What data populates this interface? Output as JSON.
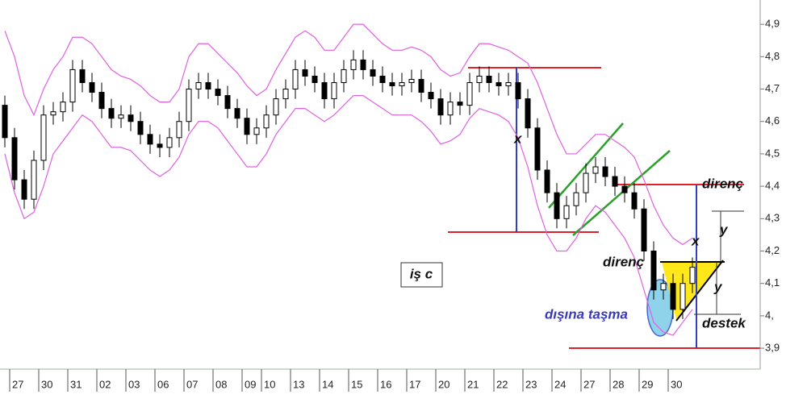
{
  "chart_data": {
    "type": "candlestick",
    "categories": [
      null,
      "27",
      null,
      null,
      "30",
      null,
      null,
      "31",
      null,
      null,
      "02",
      null,
      null,
      "03",
      null,
      null,
      "06",
      null,
      null,
      "07",
      null,
      null,
      "08",
      null,
      null,
      "09",
      null,
      "10",
      null,
      null,
      "13",
      null,
      null,
      "14",
      null,
      null,
      "15",
      null,
      null,
      "16",
      null,
      null,
      "17",
      null,
      null,
      "20",
      null,
      null,
      "21",
      null,
      null,
      "22",
      null,
      null,
      "23",
      null,
      null,
      "24",
      null,
      null,
      "27",
      null,
      null,
      "28",
      null,
      null,
      "29",
      null,
      null,
      "30",
      null,
      null
    ],
    "open": [
      4.65,
      4.55,
      4.42,
      4.36,
      4.48,
      4.62,
      4.63,
      4.66,
      4.76,
      4.72,
      4.69,
      4.64,
      4.61,
      4.62,
      4.6,
      4.56,
      4.53,
      4.52,
      4.55,
      4.6,
      4.7,
      4.72,
      4.7,
      4.68,
      4.64,
      4.61,
      4.56,
      4.58,
      4.62,
      4.67,
      4.7,
      4.76,
      4.74,
      4.72,
      4.67,
      4.72,
      4.76,
      4.79,
      4.76,
      4.74,
      4.72,
      4.71,
      4.72,
      4.73,
      4.69,
      4.67,
      4.62,
      4.66,
      4.65,
      4.72,
      4.74,
      4.72,
      4.71,
      4.72,
      4.67,
      4.58,
      4.45,
      4.38,
      4.3,
      4.34,
      4.38,
      4.44,
      4.46,
      4.43,
      4.4,
      4.38,
      4.33,
      4.2,
      4.08,
      4.1,
      4.02,
      4.1
    ],
    "high": [
      4.68,
      4.58,
      4.45,
      4.51,
      4.65,
      4.66,
      4.69,
      4.79,
      4.79,
      4.75,
      4.72,
      4.67,
      4.65,
      4.65,
      4.63,
      4.59,
      4.56,
      4.58,
      4.63,
      4.73,
      4.75,
      4.75,
      4.73,
      4.71,
      4.67,
      4.64,
      4.61,
      4.65,
      4.7,
      4.73,
      4.79,
      4.79,
      4.77,
      4.75,
      4.75,
      4.79,
      4.82,
      4.82,
      4.79,
      4.77,
      4.75,
      4.75,
      4.76,
      4.76,
      4.72,
      4.7,
      4.69,
      4.69,
      4.75,
      4.77,
      4.77,
      4.75,
      4.75,
      4.75,
      4.7,
      4.61,
      4.48,
      4.41,
      4.37,
      4.41,
      4.47,
      4.49,
      4.49,
      4.46,
      4.43,
      4.41,
      4.36,
      4.23,
      4.13,
      4.13,
      4.13,
      4.18
    ],
    "low": [
      4.52,
      4.39,
      4.33,
      4.33,
      4.45,
      4.59,
      4.6,
      4.63,
      4.69,
      4.66,
      4.61,
      4.58,
      4.58,
      4.57,
      4.53,
      4.5,
      4.49,
      4.49,
      4.52,
      4.57,
      4.67,
      4.67,
      4.65,
      4.61,
      4.58,
      4.53,
      4.53,
      4.55,
      4.59,
      4.64,
      4.67,
      4.71,
      4.69,
      4.64,
      4.64,
      4.69,
      4.73,
      4.73,
      4.71,
      4.69,
      4.68,
      4.68,
      4.69,
      4.66,
      4.64,
      4.59,
      4.59,
      4.62,
      4.62,
      4.69,
      4.69,
      4.68,
      4.68,
      4.64,
      4.55,
      4.42,
      4.35,
      4.27,
      4.27,
      4.31,
      4.35,
      4.41,
      4.4,
      4.37,
      4.35,
      4.3,
      4.17,
      4.05,
      4.05,
      3.99,
      3.99,
      4.07
    ],
    "close": [
      4.55,
      4.42,
      4.36,
      4.48,
      4.62,
      4.63,
      4.66,
      4.76,
      4.72,
      4.69,
      4.64,
      4.61,
      4.62,
      4.6,
      4.56,
      4.53,
      4.52,
      4.55,
      4.6,
      4.7,
      4.72,
      4.7,
      4.68,
      4.64,
      4.61,
      4.56,
      4.58,
      4.62,
      4.67,
      4.7,
      4.76,
      4.74,
      4.72,
      4.67,
      4.72,
      4.76,
      4.79,
      4.76,
      4.74,
      4.72,
      4.71,
      4.72,
      4.73,
      4.69,
      4.67,
      4.62,
      4.66,
      4.65,
      4.72,
      4.74,
      4.72,
      4.71,
      4.72,
      4.67,
      4.58,
      4.45,
      4.38,
      4.3,
      4.34,
      4.38,
      4.44,
      4.46,
      4.43,
      4.4,
      4.38,
      4.33,
      4.2,
      4.08,
      4.1,
      4.02,
      4.1,
      4.15
    ],
    "up_color": "#ffffff",
    "down_color": "#000000",
    "upper_band": {
      "color": "#e060e0",
      "values": [
        4.88,
        4.8,
        4.68,
        4.62,
        4.7,
        4.76,
        4.8,
        4.86,
        4.86,
        4.84,
        4.8,
        4.76,
        4.74,
        4.73,
        4.71,
        4.68,
        4.66,
        4.66,
        4.7,
        4.8,
        4.84,
        4.84,
        4.81,
        4.78,
        4.75,
        4.71,
        4.68,
        4.7,
        4.76,
        4.81,
        4.86,
        4.88,
        4.86,
        4.82,
        4.82,
        4.86,
        4.9,
        4.9,
        4.87,
        4.84,
        4.82,
        4.82,
        4.83,
        4.82,
        4.8,
        4.76,
        4.74,
        4.75,
        4.8,
        4.84,
        4.84,
        4.83,
        4.82,
        4.8,
        4.78,
        4.72,
        4.64,
        4.56,
        4.5,
        4.5,
        4.53,
        4.56,
        4.56,
        4.54,
        4.52,
        4.49,
        4.42,
        4.34,
        4.28,
        4.24,
        4.22,
        4.24
      ]
    },
    "lower_band": {
      "color": "#e060e0",
      "values": [
        4.5,
        4.38,
        4.3,
        4.32,
        4.4,
        4.5,
        4.54,
        4.58,
        4.62,
        4.6,
        4.56,
        4.52,
        4.52,
        4.51,
        4.48,
        4.45,
        4.43,
        4.45,
        4.49,
        4.56,
        4.6,
        4.6,
        4.58,
        4.54,
        4.5,
        4.46,
        4.46,
        4.5,
        4.56,
        4.6,
        4.64,
        4.64,
        4.62,
        4.6,
        4.62,
        4.65,
        4.68,
        4.68,
        4.66,
        4.64,
        4.62,
        4.62,
        4.62,
        4.6,
        4.57,
        4.53,
        4.54,
        4.56,
        4.61,
        4.64,
        4.63,
        4.62,
        4.6,
        4.55,
        4.46,
        4.34,
        4.25,
        4.2,
        4.2,
        4.24,
        4.3,
        4.34,
        4.32,
        4.28,
        4.24,
        4.18,
        4.08,
        3.98,
        3.95,
        3.94,
        3.98,
        4.02
      ]
    },
    "ylim": [
      3.843,
      4.975
    ],
    "yticks": [
      {
        "value": 3.9,
        "label": "3,9"
      },
      {
        "value": 4.0,
        "label": "4,"
      },
      {
        "value": 4.1,
        "label": "4,1"
      },
      {
        "value": 4.2,
        "label": "4,2"
      },
      {
        "value": 4.3,
        "label": "4,3"
      },
      {
        "value": 4.4,
        "label": "4,4"
      },
      {
        "value": 4.5,
        "label": "4,5"
      },
      {
        "value": 4.6,
        "label": "4,6"
      },
      {
        "value": 4.7,
        "label": "4,7"
      },
      {
        "value": 4.8,
        "label": "4,8"
      },
      {
        "value": 4.9,
        "label": "4,9"
      }
    ],
    "annotations": {
      "resistance_upper": "direnç",
      "resistance_lower": "direnç",
      "support": "destek",
      "measure_x_left": "x",
      "measure_x_right": "x",
      "measure_y_upper": "y",
      "measure_y_lower": "y",
      "box_label": "iş c",
      "breakout": "dışına taşma"
    }
  }
}
